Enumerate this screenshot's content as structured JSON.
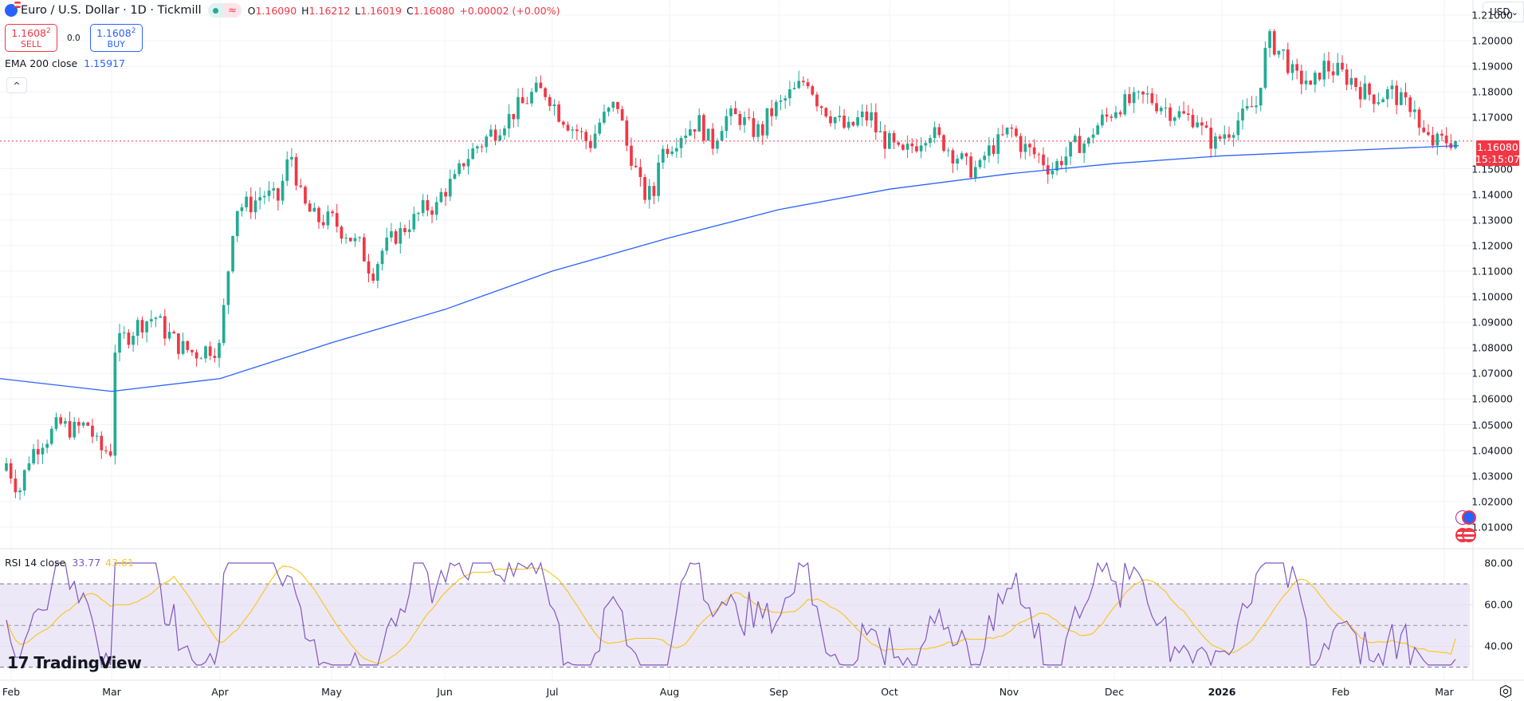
{
  "header": {
    "symbol_title": "Euro / U.S. Dollar · 1D · Tickmill",
    "market_status": {
      "open_dot": "market-open",
      "approx": "≈"
    },
    "ohlc": {
      "o_label": "O",
      "o": "1.16090",
      "h_label": "H",
      "h": "1.16212",
      "l_label": "L",
      "l": "1.16019",
      "c_label": "C",
      "c": "1.16080",
      "change": "+0.00002 (+0.00%)"
    }
  },
  "trade": {
    "sell_price": "1.1608",
    "sell_sup": "2",
    "sell_label": "SELL",
    "spread": "0.0",
    "buy_price": "1.1608",
    "buy_sup": "2",
    "buy_label": "BUY"
  },
  "indicators": {
    "ema": {
      "name": "EMA 200 close",
      "value": "1.15917"
    },
    "rsi": {
      "name": "RSI 14 close",
      "value": "33.77",
      "ma_value": "43.61"
    }
  },
  "collapse_icon": "^",
  "currency": {
    "label": "USD",
    "chevron": "⌄"
  },
  "last_price": {
    "price": "1.16080",
    "countdown": "15:15:07"
  },
  "price_axis": [
    "1.21000",
    "1.20000",
    "1.19000",
    "1.18000",
    "1.17000",
    "1.15000",
    "1.14000",
    "1.13000",
    "1.12000",
    "1.11000",
    "1.10000",
    "1.09000",
    "1.08000",
    "1.07000",
    "1.06000",
    "1.05000",
    "1.04000",
    "1.03000",
    "1.02000",
    "1.01000"
  ],
  "rsi_axis": [
    "80.00",
    "60.00",
    "40.00"
  ],
  "time_axis": [
    "Feb",
    "Mar",
    "Apr",
    "May",
    "Jun",
    "Jul",
    "Aug",
    "Sep",
    "Oct",
    "Nov",
    "Dec",
    "2026",
    "Feb",
    "Mar"
  ],
  "branding": {
    "logo_text": "TradingView"
  },
  "colors": {
    "up": "#22ab94",
    "down": "#f23645",
    "ema": "#2962ff",
    "rsi": "#7e57c2",
    "rsi_ma": "#f7c62b",
    "rsi_band": "#ede8f7"
  },
  "chart_data": [
    {
      "type": "candlestick",
      "title": "Euro / U.S. Dollar · 1D · Tickmill",
      "xlabel": "",
      "ylabel": "USD",
      "ylim": [
        1.0,
        1.215
      ],
      "grid": true,
      "x_ticks": [
        "Feb",
        "Mar",
        "Apr",
        "May",
        "Jun",
        "Jul",
        "Aug",
        "Sep",
        "Oct",
        "Nov",
        "Dec",
        "2026",
        "Feb",
        "Mar"
      ],
      "y_ticks": [
        1.01,
        1.02,
        1.03,
        1.04,
        1.05,
        1.06,
        1.07,
        1.08,
        1.09,
        1.1,
        1.11,
        1.12,
        1.13,
        1.14,
        1.15,
        1.17,
        1.18,
        1.19,
        1.2,
        1.21
      ],
      "last": {
        "open": 1.1609,
        "high": 1.16212,
        "low": 1.16019,
        "close": 1.1608,
        "change": 2e-05,
        "change_pct": 0.0
      },
      "closes_monthly_approx": {
        "Feb": [
          1.035,
          1.025,
          1.04,
          1.045,
          1.05,
          1.048,
          1.05,
          1.04
        ],
        "Mar": [
          1.08,
          1.085,
          1.09,
          1.092,
          1.085,
          1.08,
          1.078,
          1.08
        ],
        "Apr": [
          1.095,
          1.135,
          1.136,
          1.14,
          1.138,
          1.155,
          1.135,
          1.13
        ],
        "May": [
          1.13,
          1.125,
          1.12,
          1.11,
          1.12,
          1.125,
          1.13,
          1.135
        ],
        "Jun": [
          1.14,
          1.145,
          1.155,
          1.16,
          1.165,
          1.17,
          1.175,
          1.18
        ],
        "Jul": [
          1.178,
          1.17,
          1.165,
          1.16,
          1.17,
          1.175,
          1.155,
          1.14
        ],
        "Aug": [
          1.155,
          1.16,
          1.165,
          1.168,
          1.16,
          1.17,
          1.17,
          1.165
        ],
        "Sep": [
          1.17,
          1.175,
          1.18,
          1.185,
          1.175,
          1.17,
          1.165,
          1.17
        ],
        "Oct": [
          1.165,
          1.16,
          1.155,
          1.16,
          1.165,
          1.16,
          1.155,
          1.15
        ],
        "Nov": [
          1.155,
          1.16,
          1.165,
          1.158,
          1.155,
          1.15,
          1.155,
          1.16
        ],
        "Dec": [
          1.165,
          1.17,
          1.175,
          1.176,
          1.178,
          1.175,
          1.172,
          1.17
        ],
        "Jan_2026": [
          1.165,
          1.16,
          1.165,
          1.17,
          1.175,
          1.2,
          1.195,
          1.185
        ],
        "Feb_2026": [
          1.18,
          1.19,
          1.188,
          1.185,
          1.18,
          1.178,
          1.18,
          1.175
        ],
        "Mar_2026": [
          1.165,
          1.16,
          1.161
        ]
      },
      "overlays": [
        {
          "name": "EMA 200 close",
          "type": "line",
          "color": "#2962ff",
          "value_last": 1.15917,
          "approx_points": [
            [
              0,
              1.068
            ],
            [
              140,
              1.063
            ],
            [
              276,
              1.068
            ],
            [
              416,
              1.082
            ],
            [
              558,
              1.095
            ],
            [
              693,
              1.11
            ],
            [
              840,
              1.123
            ],
            [
              977,
              1.134
            ],
            [
              1116,
              1.142
            ],
            [
              1266,
              1.148
            ],
            [
              1398,
              1.152
            ],
            [
              1533,
              1.155
            ],
            [
              1682,
              1.157
            ],
            [
              1830,
              1.159
            ]
          ]
        }
      ]
    },
    {
      "type": "line",
      "title": "RSI 14 close",
      "ylim": [
        28,
        82
      ],
      "y_ticks": [
        40,
        60,
        80
      ],
      "bands": {
        "upper": 70,
        "middle": 50,
        "lower": 30
      },
      "series": [
        {
          "name": "RSI",
          "color": "#7e57c2",
          "last": 33.77
        },
        {
          "name": "RSI-based MA",
          "color": "#f7c62b",
          "last": 43.61
        }
      ]
    }
  ]
}
